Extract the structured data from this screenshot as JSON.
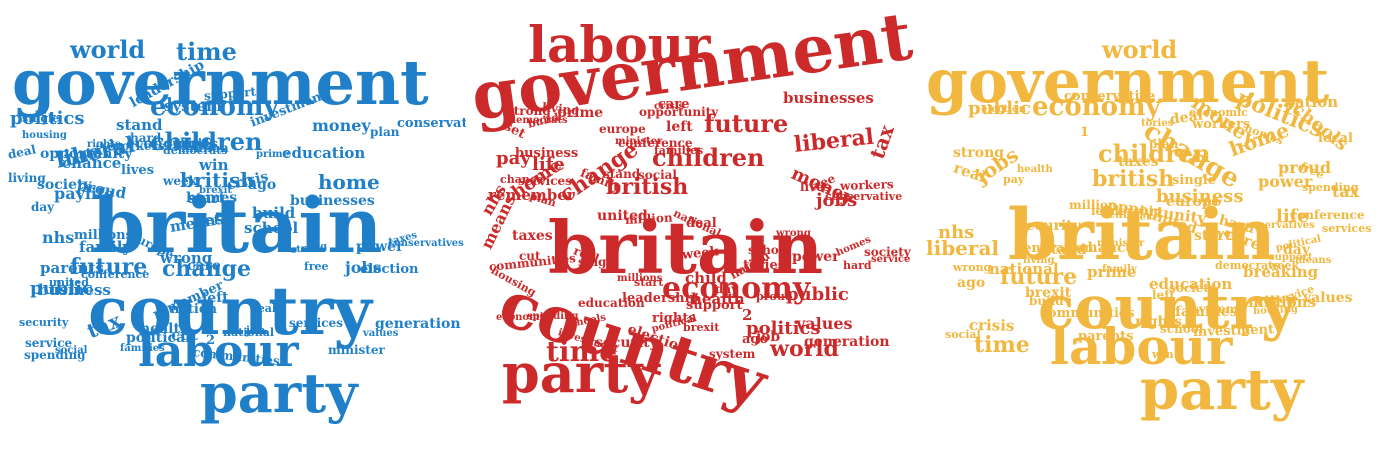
{
  "colors": {
    "blue": "#1f7fc8",
    "red": "#cc2a2a",
    "yellow": "#f1b73e"
  },
  "clouds": [
    {
      "name": "blue",
      "big": [
        "government",
        "britain",
        "country",
        "labour",
        "party"
      ],
      "medium": [
        "world",
        "time",
        "economy",
        "liberal",
        "children",
        "british",
        "future",
        "change",
        "politics",
        "home",
        "tax",
        "nhs",
        "public",
        "paylife",
        "jobs",
        "power",
        "money"
      ],
      "small": [
        "values",
        "plan",
        "prime",
        "schools",
        "united",
        "security",
        "tories",
        "strong",
        "spending",
        "job",
        "homes",
        "democrats",
        "opportunity",
        "generation",
        "school",
        "hard",
        "education",
        "europe",
        "nation",
        "business",
        "conservative",
        "real",
        "social",
        "left",
        "deal",
        "child",
        "conservatives",
        "day",
        "businesses",
        "election",
        "leadership",
        "chance",
        "week",
        "brexit",
        "build",
        "cut",
        "care",
        "2",
        "1",
        "ago",
        "start",
        "living",
        "investment",
        "win",
        "communities",
        "conference",
        "crisis",
        "remember",
        "million",
        "families",
        "means",
        "proud",
        "minister",
        "economic",
        "family",
        "health",
        "housing",
        "national",
        "stand",
        "free",
        "parents",
        "lives",
        "society",
        "set",
        "single",
        "services",
        "system",
        "rights",
        "political",
        "support",
        "workers",
        "millions",
        "service",
        "taxes",
        "wrong"
      ]
    },
    {
      "name": "red",
      "big": [
        "labour",
        "government",
        "britain",
        "country",
        "party"
      ],
      "medium": [
        "economy",
        "time",
        "world",
        "children",
        "future",
        "british",
        "change",
        "tax",
        "liberal",
        "politics",
        "public",
        "money",
        "life",
        "pay",
        "home",
        "nhs",
        "jobs",
        "means",
        "power",
        "values"
      ],
      "small": [
        "workers",
        "support",
        "opportunity",
        "minister",
        "schools",
        "prime",
        "school",
        "family",
        "leadership",
        "rights",
        "taxes",
        "democrats",
        "education",
        "strong",
        "conservative",
        "job",
        "hard",
        "social",
        "political",
        "service",
        "week",
        "security",
        "stand",
        "real",
        "business",
        "set",
        "cut",
        "build",
        "day",
        "2",
        "1",
        "ago",
        "homes",
        "conference",
        "europe",
        "care",
        "child",
        "health",
        "housing",
        "chance",
        "living",
        "lives",
        "brexit",
        "crisis",
        "free",
        "businesses",
        "investment",
        "generation",
        "united",
        "spending",
        "plan",
        "left",
        "nation",
        "economic",
        "million",
        "services",
        "system",
        "election",
        "deal",
        "communities",
        "families",
        "tories",
        "society",
        "wrong",
        "proud",
        "remember",
        "millions",
        "single",
        "national",
        "start"
      ]
    },
    {
      "name": "yellow",
      "big": [
        "government",
        "britain",
        "country",
        "labour",
        "party"
      ],
      "medium": [
        "world",
        "economy",
        "change",
        "children",
        "british",
        "politics",
        "money",
        "schools",
        "public",
        "home",
        "liberal",
        "jobs",
        "future",
        "time",
        "tax",
        "power",
        "proud",
        "nhs",
        "life",
        "business"
      ],
      "small": [
        "values",
        "social",
        "political",
        "rights",
        "hard",
        "health",
        "housing",
        "leadership",
        "parents",
        "single",
        "prime",
        "services",
        "millions",
        "million",
        "conservatives",
        "strong",
        "spending",
        "minister",
        "real",
        "election",
        "chance",
        "families",
        "family",
        "europe",
        "free",
        "job",
        "pay",
        "nation",
        "breaking",
        "deal",
        "means",
        "left",
        "lives",
        "win",
        "care",
        "local",
        "economic",
        "homes",
        "stand",
        "taxes",
        "2",
        "1",
        "ago",
        "set",
        "crisis",
        "build",
        "investment",
        "generation",
        "opportunity",
        "workers",
        "democrats",
        "communities",
        "education",
        "national",
        "start",
        "support",
        "plan",
        "living",
        "security",
        "school",
        "system",
        "conservative",
        "conference",
        "society",
        "service",
        "tories",
        "wrong",
        "united",
        "brexit",
        "day",
        "week",
        "cut"
      ]
    }
  ]
}
